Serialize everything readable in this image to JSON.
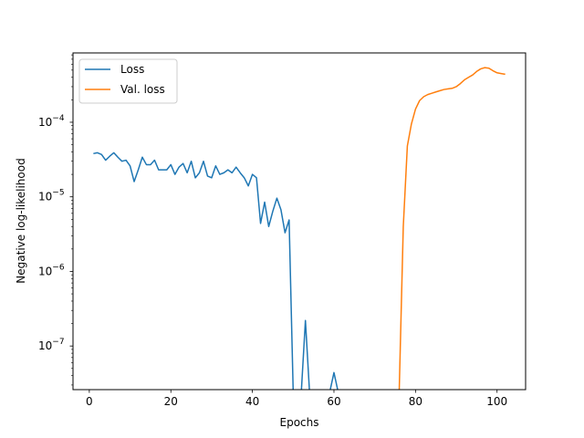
{
  "chart_data": {
    "type": "line",
    "title": "",
    "xlabel": "Epochs",
    "ylabel": "Negative log-likelihood",
    "xlim": [
      -4,
      107
    ],
    "ylim": [
      2.6e-08,
      0.00085
    ],
    "yscale": "log",
    "xticks": [
      0,
      20,
      40,
      60,
      80,
      100
    ],
    "yticks": [
      {
        "value": 1e-07,
        "label_base": "10",
        "label_exp": "−7"
      },
      {
        "value": 1e-06,
        "label_base": "10",
        "label_exp": "−6"
      },
      {
        "value": 1e-05,
        "label_base": "10",
        "label_exp": "−5"
      },
      {
        "value": 0.0001,
        "label_base": "10",
        "label_exp": "−4"
      }
    ],
    "grid": false,
    "legend_position": "top-left",
    "series": [
      {
        "name": "Loss",
        "color": "#1f77b4",
        "x": [
          1,
          2,
          3,
          4,
          5,
          6,
          7,
          8,
          9,
          10,
          11,
          12,
          13,
          14,
          15,
          16,
          17,
          18,
          19,
          20,
          21,
          22,
          23,
          24,
          25,
          26,
          27,
          28,
          29,
          30,
          31,
          32,
          33,
          34,
          35,
          36,
          37,
          38,
          39,
          40,
          41,
          42,
          43,
          44,
          45,
          46,
          47,
          48,
          49,
          50,
          51,
          52,
          53,
          54,
          55,
          56,
          57,
          58,
          59,
          60,
          61
        ],
        "y": [
          3.8e-05,
          3.9e-05,
          3.7e-05,
          3.1e-05,
          3.5e-05,
          3.9e-05,
          3.4e-05,
          3e-05,
          3.1e-05,
          2.6e-05,
          1.6e-05,
          2.3e-05,
          3.4e-05,
          2.7e-05,
          2.7e-05,
          3.1e-05,
          2.3e-05,
          2.3e-05,
          2.3e-05,
          2.7e-05,
          2e-05,
          2.5e-05,
          2.8e-05,
          2.1e-05,
          3e-05,
          1.8e-05,
          2.1e-05,
          3e-05,
          1.9e-05,
          1.8e-05,
          2.6e-05,
          2e-05,
          2.1e-05,
          2.3e-05,
          2.1e-05,
          2.5e-05,
          2.1e-05,
          1.8e-05,
          1.4e-05,
          2e-05,
          1.8e-05,
          4.4e-06,
          8.5e-06,
          4e-06,
          6.4e-06,
          9.6e-06,
          6.7e-06,
          3.3e-06,
          4.9e-06,
          null,
          null,
          null,
          2.2e-07,
          null,
          null,
          null,
          null,
          null,
          null,
          4.4e-08,
          null
        ]
      },
      {
        "name": "Val. loss",
        "color": "#ff7f0e",
        "x": [
          76,
          77,
          78,
          79,
          80,
          81,
          82,
          83,
          84,
          85,
          86,
          87,
          88,
          89,
          90,
          91,
          92,
          93,
          94,
          95,
          96,
          97,
          98,
          99,
          100,
          101,
          102
        ],
        "y": [
          null,
          4e-06,
          4.8e-05,
          9.5e-05,
          0.00015,
          0.000195,
          0.00022,
          0.000235,
          0.000245,
          0.000255,
          0.000265,
          0.000275,
          0.00028,
          0.000285,
          0.0003,
          0.00033,
          0.00037,
          0.0004,
          0.00043,
          0.00048,
          0.00052,
          0.00054,
          0.00053,
          0.00049,
          0.00046,
          0.00045,
          0.00044
        ]
      }
    ]
  }
}
